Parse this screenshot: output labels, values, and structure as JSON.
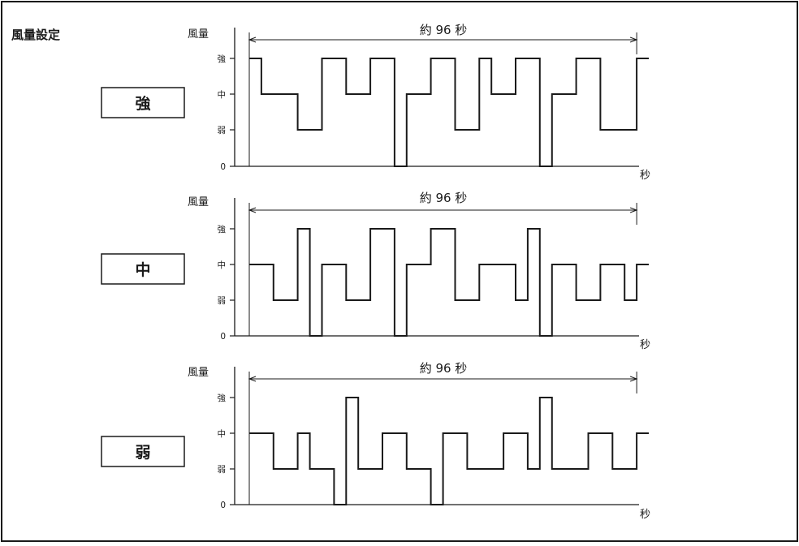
{
  "title": "風量設定",
  "panels": [
    {
      "mode": "強",
      "ylabel": "風量",
      "levels": [
        "強",
        "中",
        "弱",
        "0"
      ],
      "duration": "約 96 秒",
      "xunit": "秒",
      "waveform": [
        [
          0,
          3
        ],
        [
          3,
          3
        ],
        [
          3,
          2
        ],
        [
          12,
          2
        ],
        [
          12,
          1
        ],
        [
          18,
          1
        ],
        [
          18,
          3
        ],
        [
          24,
          3
        ],
        [
          24,
          2
        ],
        [
          30,
          2
        ],
        [
          30,
          3
        ],
        [
          36,
          3
        ],
        [
          36,
          0
        ],
        [
          39,
          0
        ],
        [
          39,
          2
        ],
        [
          45,
          2
        ],
        [
          45,
          3
        ],
        [
          51,
          3
        ],
        [
          51,
          1
        ],
        [
          57,
          1
        ],
        [
          57,
          3
        ],
        [
          60,
          3
        ],
        [
          60,
          2
        ],
        [
          66,
          2
        ],
        [
          66,
          3
        ],
        [
          72,
          3
        ],
        [
          72,
          0
        ],
        [
          75,
          0
        ],
        [
          75,
          2
        ],
        [
          81,
          2
        ],
        [
          81,
          3
        ],
        [
          87,
          3
        ],
        [
          87,
          1
        ],
        [
          96,
          1
        ],
        [
          96,
          3
        ],
        [
          99,
          3
        ]
      ]
    },
    {
      "mode": "中",
      "ylabel": "風量",
      "levels": [
        "強",
        "中",
        "弱",
        "0"
      ],
      "duration": "約 96 秒",
      "xunit": "秒",
      "waveform": [
        [
          0,
          2
        ],
        [
          6,
          2
        ],
        [
          6,
          1
        ],
        [
          12,
          1
        ],
        [
          12,
          3
        ],
        [
          15,
          3
        ],
        [
          15,
          0
        ],
        [
          18,
          0
        ],
        [
          18,
          2
        ],
        [
          24,
          2
        ],
        [
          24,
          1
        ],
        [
          30,
          1
        ],
        [
          30,
          3
        ],
        [
          36,
          3
        ],
        [
          36,
          0
        ],
        [
          39,
          0
        ],
        [
          39,
          2
        ],
        [
          45,
          2
        ],
        [
          45,
          3
        ],
        [
          51,
          3
        ],
        [
          51,
          1
        ],
        [
          57,
          1
        ],
        [
          57,
          2
        ],
        [
          66,
          2
        ],
        [
          66,
          1
        ],
        [
          69,
          1
        ],
        [
          69,
          3
        ],
        [
          72,
          3
        ],
        [
          72,
          0
        ],
        [
          75,
          0
        ],
        [
          75,
          2
        ],
        [
          81,
          2
        ],
        [
          81,
          1
        ],
        [
          87,
          1
        ],
        [
          87,
          2
        ],
        [
          93,
          2
        ],
        [
          93,
          1
        ],
        [
          96,
          1
        ],
        [
          96,
          2
        ],
        [
          99,
          2
        ]
      ]
    },
    {
      "mode": "弱",
      "ylabel": "風量",
      "levels": [
        "強",
        "中",
        "弱",
        "0"
      ],
      "duration": "約 96 秒",
      "xunit": "秒",
      "waveform": [
        [
          0,
          2
        ],
        [
          6,
          2
        ],
        [
          6,
          1
        ],
        [
          12,
          1
        ],
        [
          12,
          2
        ],
        [
          15,
          2
        ],
        [
          15,
          1
        ],
        [
          21,
          1
        ],
        [
          21,
          0
        ],
        [
          24,
          0
        ],
        [
          24,
          3
        ],
        [
          27,
          3
        ],
        [
          27,
          1
        ],
        [
          33,
          1
        ],
        [
          33,
          2
        ],
        [
          39,
          2
        ],
        [
          39,
          1
        ],
        [
          45,
          1
        ],
        [
          45,
          0
        ],
        [
          48,
          0
        ],
        [
          48,
          2
        ],
        [
          54,
          2
        ],
        [
          54,
          1
        ],
        [
          63,
          1
        ],
        [
          63,
          2
        ],
        [
          69,
          2
        ],
        [
          69,
          1
        ],
        [
          72,
          1
        ],
        [
          72,
          3
        ],
        [
          75,
          3
        ],
        [
          75,
          1
        ],
        [
          84,
          1
        ],
        [
          84,
          2
        ],
        [
          90,
          2
        ],
        [
          90,
          1
        ],
        [
          96,
          1
        ],
        [
          96,
          2
        ],
        [
          99,
          2
        ]
      ]
    }
  ]
}
